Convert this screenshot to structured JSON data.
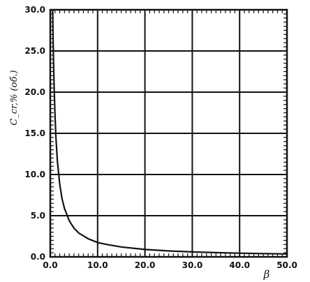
{
  "chart_data": {
    "type": "line",
    "xlabel": "β",
    "ylabel": "C_cr,% (об.)",
    "xlim": [
      0,
      50
    ],
    "ylim": [
      0,
      30
    ],
    "x_ticks": [
      0,
      10,
      20,
      30,
      40,
      50
    ],
    "y_ticks": [
      0,
      5,
      10,
      15,
      20,
      25,
      30
    ],
    "x_tick_labels": [
      "0.0",
      "10.0",
      "20.0",
      "30.0",
      "40.0",
      "50.0"
    ],
    "y_tick_labels": [
      "0.0",
      "5.0",
      "10.0",
      "15.0",
      "20.0",
      "25.0",
      "30.0"
    ],
    "grid": true,
    "series": [
      {
        "x": [
          0.5,
          0.6,
          0.8,
          1.0,
          1.2,
          1.5,
          2.0,
          2.5,
          3.0,
          4.0,
          5.0,
          6.0,
          8.0,
          10.0,
          12.0,
          15.0,
          20.0,
          25.0,
          30.0,
          35.0,
          40.0,
          45.0,
          50.0
        ],
        "values": [
          30.0,
          26.0,
          21.0,
          17.2,
          14.5,
          11.6,
          8.8,
          7.0,
          5.9,
          4.4,
          3.5,
          2.9,
          2.2,
          1.75,
          1.5,
          1.2,
          0.9,
          0.72,
          0.6,
          0.52,
          0.45,
          0.4,
          0.36
        ]
      }
    ]
  }
}
